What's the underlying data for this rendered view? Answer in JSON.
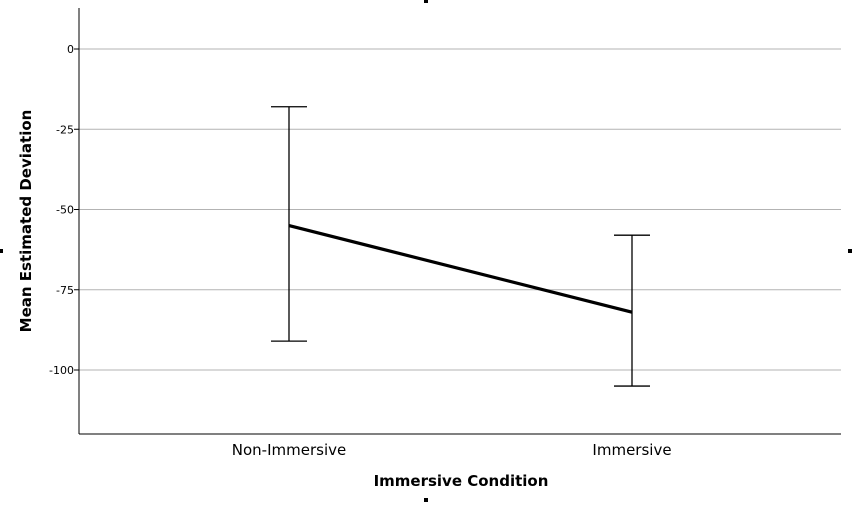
{
  "chart_data": {
    "type": "line",
    "title": "",
    "xlabel": "Immersive Condition",
    "ylabel": "Mean Estimated Deviation",
    "categories": [
      "Non-Immersive",
      "Immersive"
    ],
    "series": [
      {
        "values": [
          -55,
          -82
        ],
        "error_low": [
          -91,
          -105
        ],
        "error_high": [
          -18,
          -58
        ],
        "color": "#000000"
      }
    ],
    "yticks": [
      0,
      -25,
      -50,
      -75,
      -100
    ],
    "ytick_labels": [
      "0",
      "-25",
      "-50",
      "-75",
      "-100"
    ],
    "ylim": [
      -120,
      13
    ],
    "grid": true,
    "grid_color": "#b3b3b3",
    "legend": "none"
  }
}
